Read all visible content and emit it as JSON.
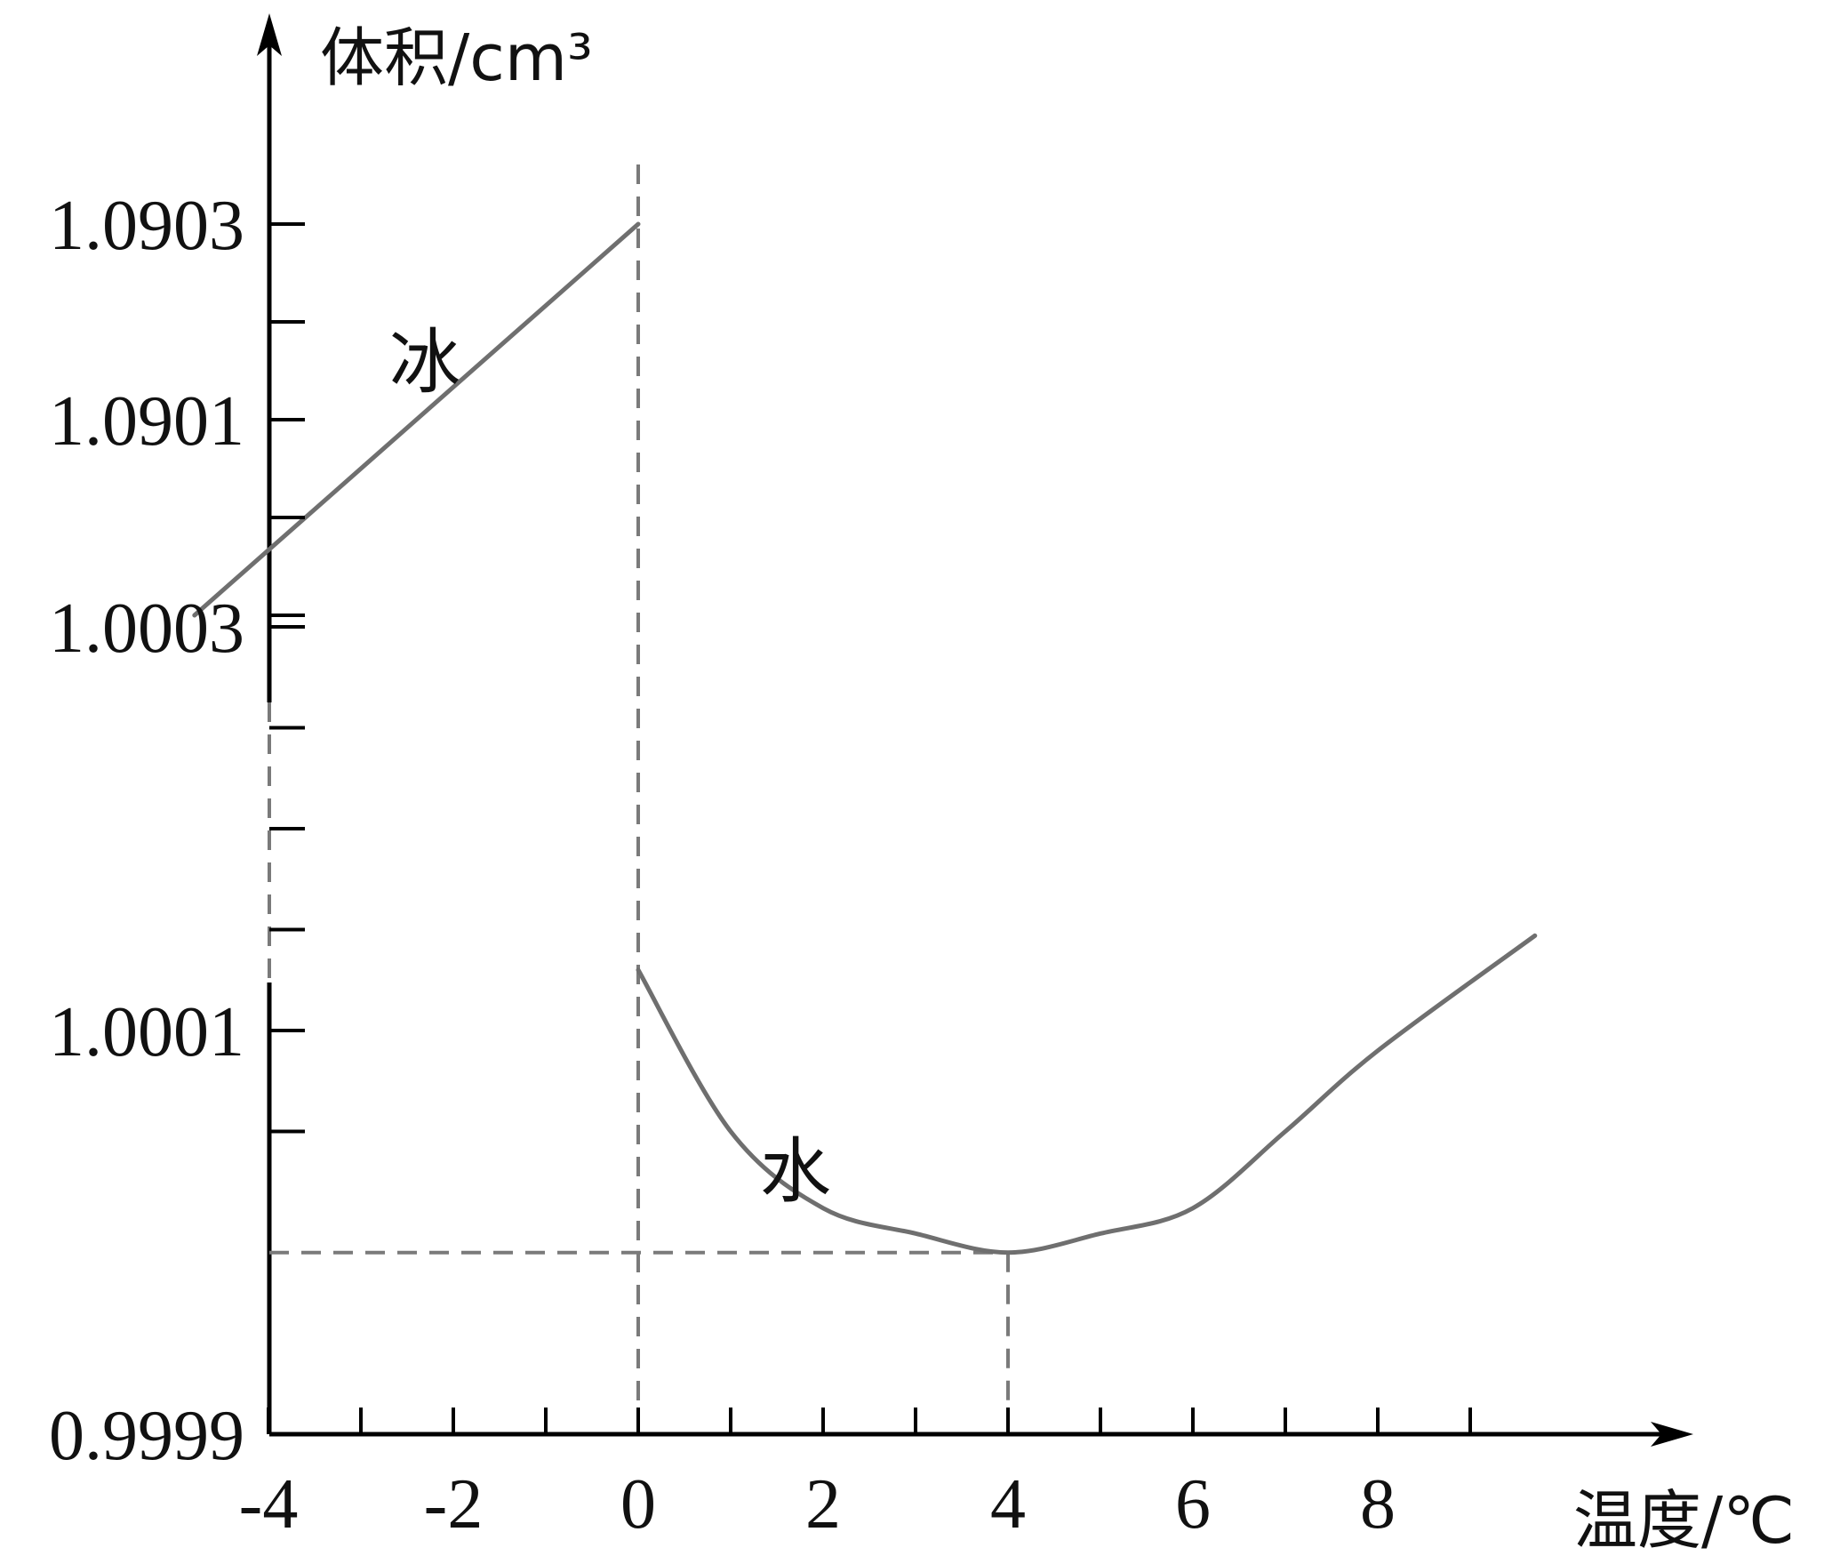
{
  "chart_data": {
    "type": "line",
    "title": "",
    "ylabel": "体积/cm³",
    "xlabel": "温度/℃",
    "x_tick_labels": [
      "-4",
      "-2",
      "0",
      "2",
      "4",
      "6",
      "8"
    ],
    "y_tick_labels": [
      "0.9999",
      "1.0001",
      "1.0003",
      "1.0901",
      "1.0903"
    ],
    "axis_break": true,
    "series": [
      {
        "name": "冰",
        "x": [
          -4.8,
          0
        ],
        "y": [
          1.0899,
          1.0903
        ]
      },
      {
        "name": "水",
        "x": [
          0,
          1,
          2,
          3,
          4,
          5,
          6,
          7,
          8,
          9.7
        ],
        "y": [
          1.00013,
          1.00005,
          1.000012,
          0.9999994,
          0.99999,
          0.9999994,
          1.000012,
          1.00005,
          1.00009,
          1.000147
        ]
      }
    ],
    "reference_lines": {
      "vertical_x": [
        0,
        4
      ],
      "horizontal_y": [
        0.99999
      ]
    },
    "colors": {
      "series": "#6f6f6f",
      "dash": "#7a7a7a",
      "axis": "#000000"
    }
  }
}
